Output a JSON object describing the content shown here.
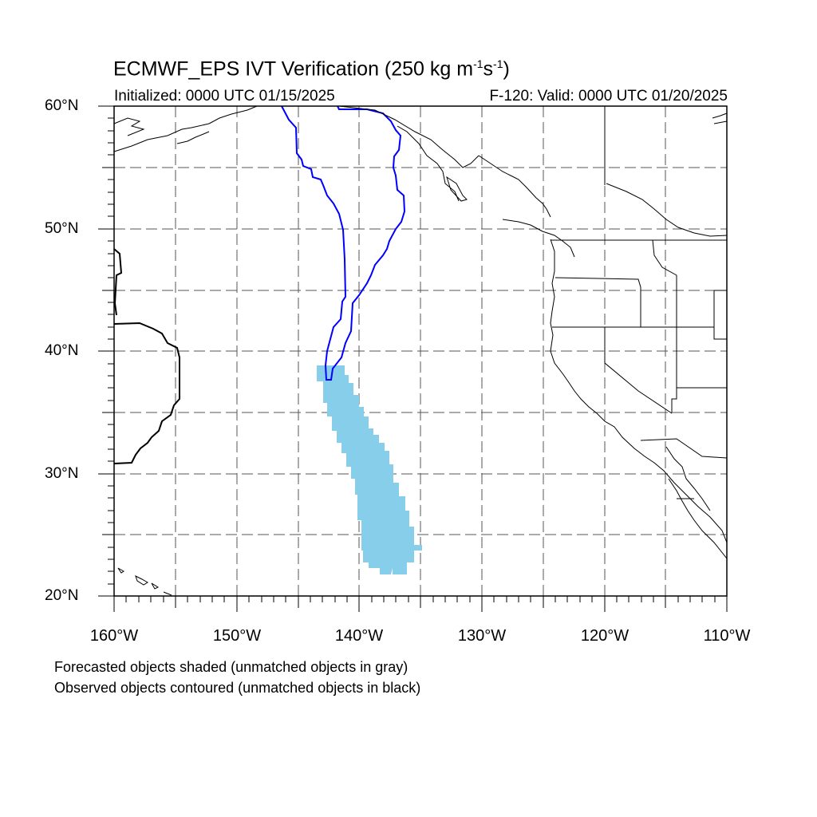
{
  "title": {
    "prefix": "ECMWF_EPS IVT Verification (250 kg m",
    "exp1": "-1",
    "mid": "s",
    "exp2": "-1",
    "suffix": ")"
  },
  "initialized": "Initialized: 0000 UTC 01/15/2025",
  "valid": "F-120: Valid: 0000 UTC 01/20/2025",
  "axes": {
    "lat_labels": [
      "60°N",
      "50°N",
      "40°N",
      "30°N",
      "20°N"
    ],
    "lon_labels": [
      "160°W",
      "150°W",
      "140°W",
      "130°W",
      "120°W",
      "110°W"
    ],
    "lat_range": [
      20,
      60
    ],
    "lon_range": [
      -160,
      -110
    ],
    "grid_spacing_deg": 5,
    "grid": true
  },
  "legend": {
    "forecast": "Forecasted objects shaded (unmatched objects in gray)",
    "observed": "Observed objects contoured (unmatched objects in black)"
  },
  "colors": {
    "forecast_matched": "#87ceeb",
    "observed_matched": "#0000ff",
    "observed_unmatched": "#000000",
    "grid": "#555555",
    "coast": "#000000"
  }
}
